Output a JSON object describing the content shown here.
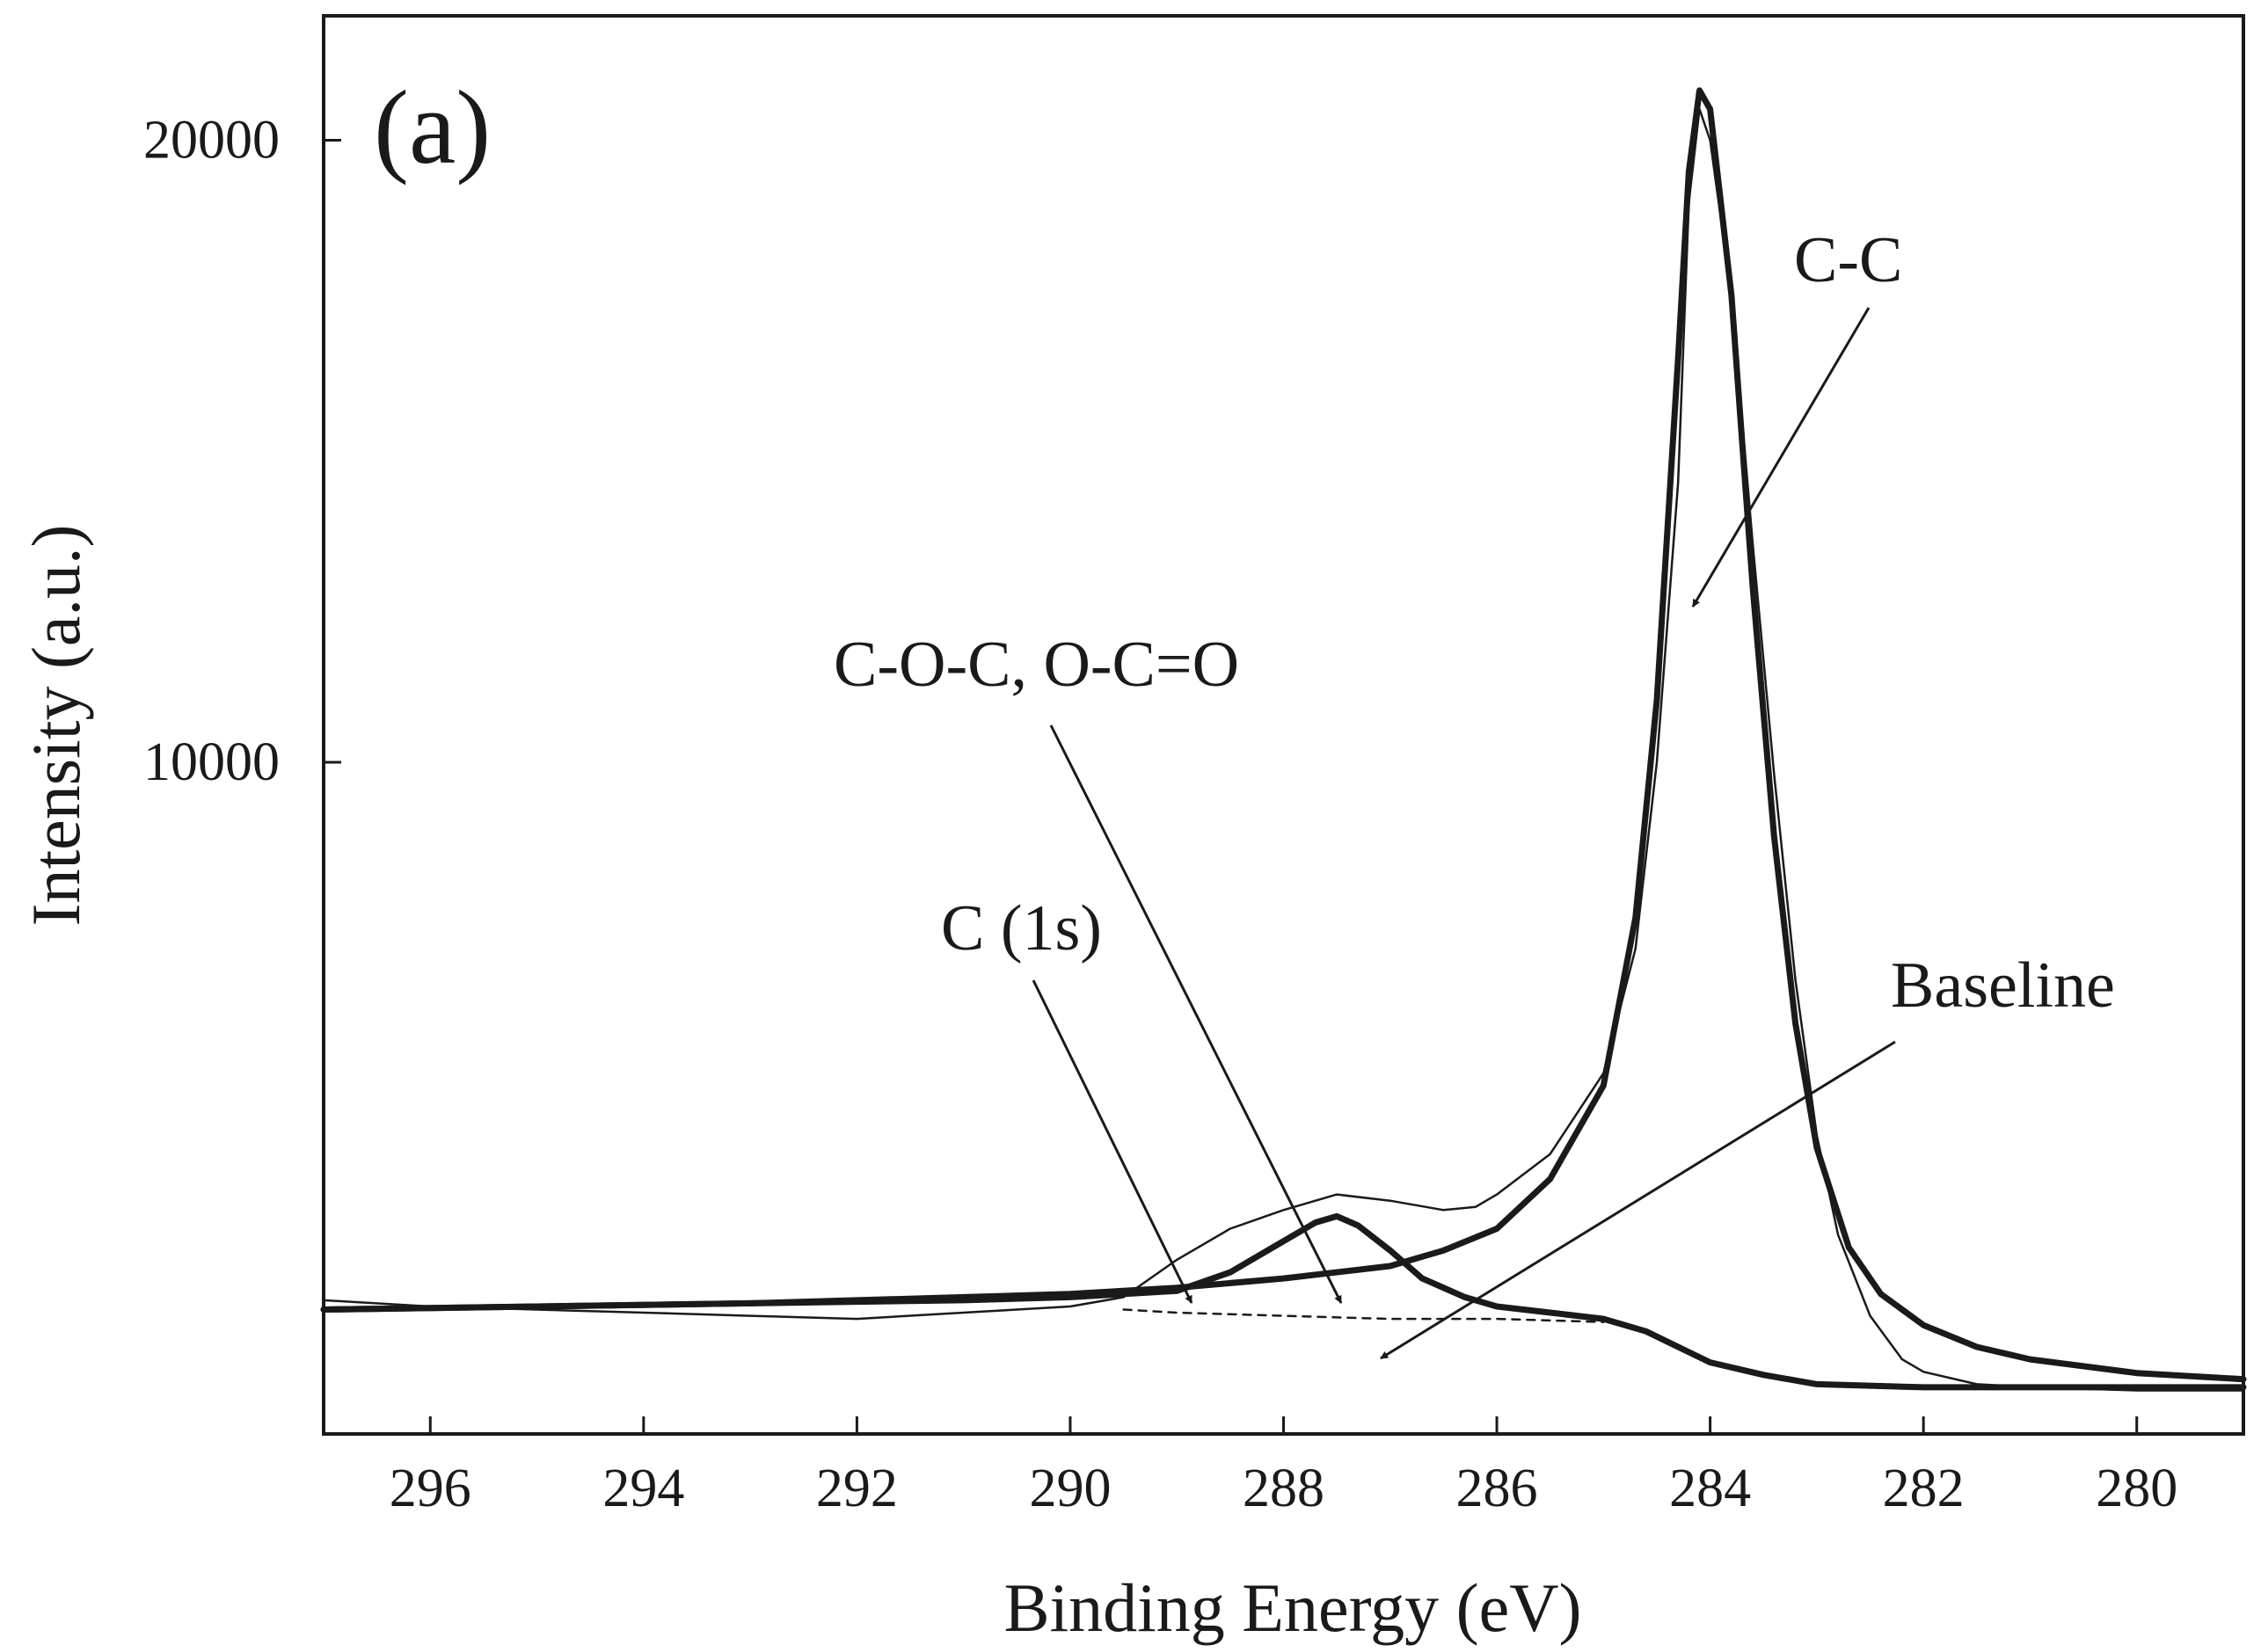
{
  "chart_data": {
    "type": "line",
    "panel_label": "(a)",
    "xlabel": "Binding Energy (eV)",
    "ylabel": "Intensity (a.u.)",
    "xlim": [
      297,
      279
    ],
    "x_reversed": true,
    "ylim": [
      -800,
      22000
    ],
    "x_ticks": [
      {
        "value": 296,
        "label": "296"
      },
      {
        "value": 294,
        "label": "294"
      },
      {
        "value": 292,
        "label": "292"
      },
      {
        "value": 290,
        "label": "290"
      },
      {
        "value": 288,
        "label": "288"
      },
      {
        "value": 286,
        "label": "286"
      },
      {
        "value": 284,
        "label": "284"
      },
      {
        "value": 282,
        "label": "282"
      },
      {
        "value": 280,
        "label": "280"
      }
    ],
    "y_ticks": [
      {
        "value": 10000,
        "label": "10000"
      },
      {
        "value": 20000,
        "label": "20000"
      }
    ],
    "grid": false,
    "series": [
      {
        "name": "C (1s)",
        "style": "thin",
        "points": [
          [
            297,
            1350
          ],
          [
            296,
            1250
          ],
          [
            295,
            1200
          ],
          [
            294,
            1150
          ],
          [
            293,
            1100
          ],
          [
            292,
            1050
          ],
          [
            291,
            1150
          ],
          [
            290,
            1250
          ],
          [
            289.5,
            1400
          ],
          [
            289,
            2000
          ],
          [
            288.5,
            2500
          ],
          [
            288,
            2800
          ],
          [
            287.5,
            3050
          ],
          [
            287,
            2950
          ],
          [
            286.5,
            2800
          ],
          [
            286.2,
            2850
          ],
          [
            286,
            3050
          ],
          [
            285.5,
            3700
          ],
          [
            285,
            5000
          ],
          [
            284.7,
            7000
          ],
          [
            284.5,
            10000
          ],
          [
            284.3,
            14500
          ],
          [
            284.2,
            19000
          ],
          [
            284.1,
            20500
          ],
          [
            284,
            20000
          ],
          [
            283.8,
            17500
          ],
          [
            283.6,
            13500
          ],
          [
            283.4,
            9800
          ],
          [
            283.2,
            6500
          ],
          [
            283,
            4000
          ],
          [
            282.8,
            2400
          ],
          [
            282.5,
            1100
          ],
          [
            282.2,
            400
          ],
          [
            282,
            200
          ],
          [
            281.5,
            0
          ],
          [
            281,
            -50
          ],
          [
            280,
            -100
          ],
          [
            279,
            -100
          ]
        ]
      },
      {
        "name": "C-C",
        "style": "thick",
        "points": [
          [
            297,
            1200
          ],
          [
            295,
            1250
          ],
          [
            293,
            1300
          ],
          [
            291,
            1400
          ],
          [
            290,
            1450
          ],
          [
            289,
            1550
          ],
          [
            288,
            1700
          ],
          [
            287,
            1900
          ],
          [
            286.5,
            2150
          ],
          [
            286,
            2500
          ],
          [
            285.5,
            3300
          ],
          [
            285,
            4800
          ],
          [
            284.7,
            7500
          ],
          [
            284.5,
            11000
          ],
          [
            284.3,
            16500
          ],
          [
            284.2,
            19500
          ],
          [
            284.1,
            20800
          ],
          [
            284,
            20500
          ],
          [
            283.8,
            17500
          ],
          [
            283.6,
            12800
          ],
          [
            283.4,
            8800
          ],
          [
            283.2,
            5800
          ],
          [
            283,
            3800
          ],
          [
            282.7,
            2200
          ],
          [
            282.4,
            1450
          ],
          [
            282,
            950
          ],
          [
            281.5,
            600
          ],
          [
            281,
            400
          ],
          [
            280,
            180
          ],
          [
            279,
            80
          ]
        ]
      },
      {
        "name": "C-O-C, O-C=O",
        "style": "thick",
        "points": [
          [
            297,
            1200
          ],
          [
            295,
            1250
          ],
          [
            293,
            1300
          ],
          [
            291,
            1350
          ],
          [
            290,
            1400
          ],
          [
            289,
            1500
          ],
          [
            288.5,
            1800
          ],
          [
            288,
            2300
          ],
          [
            287.7,
            2600
          ],
          [
            287.5,
            2700
          ],
          [
            287.3,
            2550
          ],
          [
            287,
            2150
          ],
          [
            286.7,
            1700
          ],
          [
            286.3,
            1400
          ],
          [
            286,
            1250
          ],
          [
            285.5,
            1150
          ],
          [
            285,
            1050
          ],
          [
            284.6,
            850
          ],
          [
            284.3,
            600
          ],
          [
            284,
            350
          ],
          [
            283.5,
            150
          ],
          [
            283,
            0
          ],
          [
            282,
            -50
          ],
          [
            279,
            -50
          ]
        ]
      },
      {
        "name": "Baseline",
        "style": "dashed",
        "points": [
          [
            289.5,
            1200
          ],
          [
            289,
            1150
          ],
          [
            288,
            1100
          ],
          [
            287,
            1050
          ],
          [
            286,
            1050
          ],
          [
            285,
            1000
          ]
        ]
      }
    ],
    "annotations": [
      {
        "text": "C-C",
        "arrow_to": [
          284.4,
          12500
        ]
      },
      {
        "text": "C-O-C, O-C=O",
        "arrow_to": [
          287.6,
          2350
        ]
      },
      {
        "text": "C (1s)",
        "arrow_to": [
          288.9,
          2000
        ]
      },
      {
        "text": "Baseline",
        "arrow_to": [
          287.1,
          1150
        ]
      }
    ]
  }
}
